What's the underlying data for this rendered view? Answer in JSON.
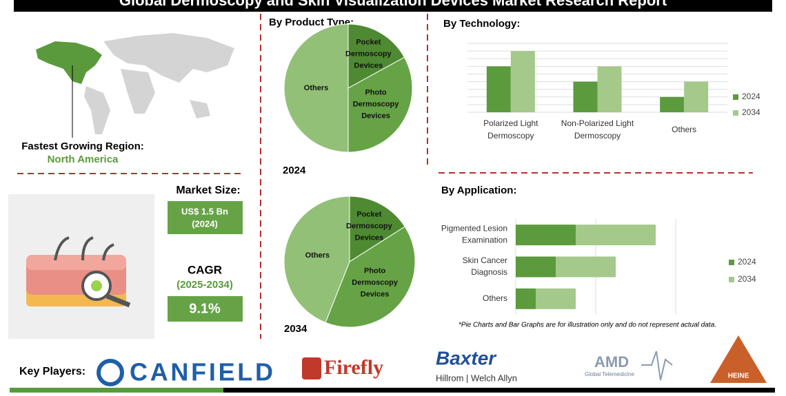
{
  "header": {
    "title": "Global Dermoscopy and Skin Visualization Devices Market Research Report"
  },
  "region": {
    "label": "Fastest Growing Region:",
    "value": "North America"
  },
  "market_size": {
    "label": "Market Size:",
    "value": "US$ 1.5 Bn",
    "year": "(2024)"
  },
  "cagr": {
    "label": "CAGR",
    "period": "(2025-2034)",
    "value": "9.1%"
  },
  "chart_data": [
    {
      "type": "pie",
      "title": "By Product Type:",
      "year_label": "2024",
      "categories": [
        "Pocket Dermoscopy Devices",
        "Photo Dermoscopy Devices",
        "Others"
      ],
      "values": [
        17,
        33,
        50
      ],
      "colors": [
        "#4e8a32",
        "#66a346",
        "#93c077"
      ]
    },
    {
      "type": "pie",
      "year_label": "2034",
      "categories": [
        "Pocket Dermoscopy Devices",
        "Photo Dermoscopy Devices",
        "Others"
      ],
      "values": [
        16,
        40,
        44
      ],
      "colors": [
        "#4e8a32",
        "#66a346",
        "#93c077"
      ]
    },
    {
      "type": "bar",
      "title": "By  Technology:",
      "categories": [
        "Polarized Light Dermoscopy",
        "Non-Polarized Light Dermoscopy",
        "Others"
      ],
      "series": [
        {
          "name": "2024",
          "color": "#5b9b3d",
          "values": [
            6,
            4,
            2
          ]
        },
        {
          "name": "2034",
          "color": "#a4c98b",
          "values": [
            8,
            6,
            4
          ]
        }
      ],
      "ylim": [
        0,
        9
      ],
      "yticks": [
        0,
        1,
        2,
        3,
        4,
        5,
        6,
        7,
        8,
        9
      ],
      "grid": true
    },
    {
      "type": "hbar-stacked",
      "title": "By Application:",
      "categories": [
        "Pigmented Lesion Examination",
        "Skin Cancer Diagnosis",
        "Others"
      ],
      "series": [
        {
          "name": "2024",
          "color": "#5b9b3d",
          "values": [
            3,
            2,
            1
          ]
        },
        {
          "name": "2034",
          "color": "#a4c98b",
          "values": [
            4,
            3,
            2
          ]
        }
      ],
      "xlim": [
        0,
        8
      ],
      "xticks": [
        0,
        4,
        8
      ],
      "grid": true
    }
  ],
  "note": "*Pie Charts and Bar Graphs are for illustration only and do not represent actual data.",
  "key_players": {
    "label": "Key Players:",
    "names": [
      "CANFIELD",
      "Firefly",
      "Baxter",
      "Hillrom | Welch Allyn",
      "AMD",
      "Global Telemedicine",
      "HEINE"
    ]
  }
}
